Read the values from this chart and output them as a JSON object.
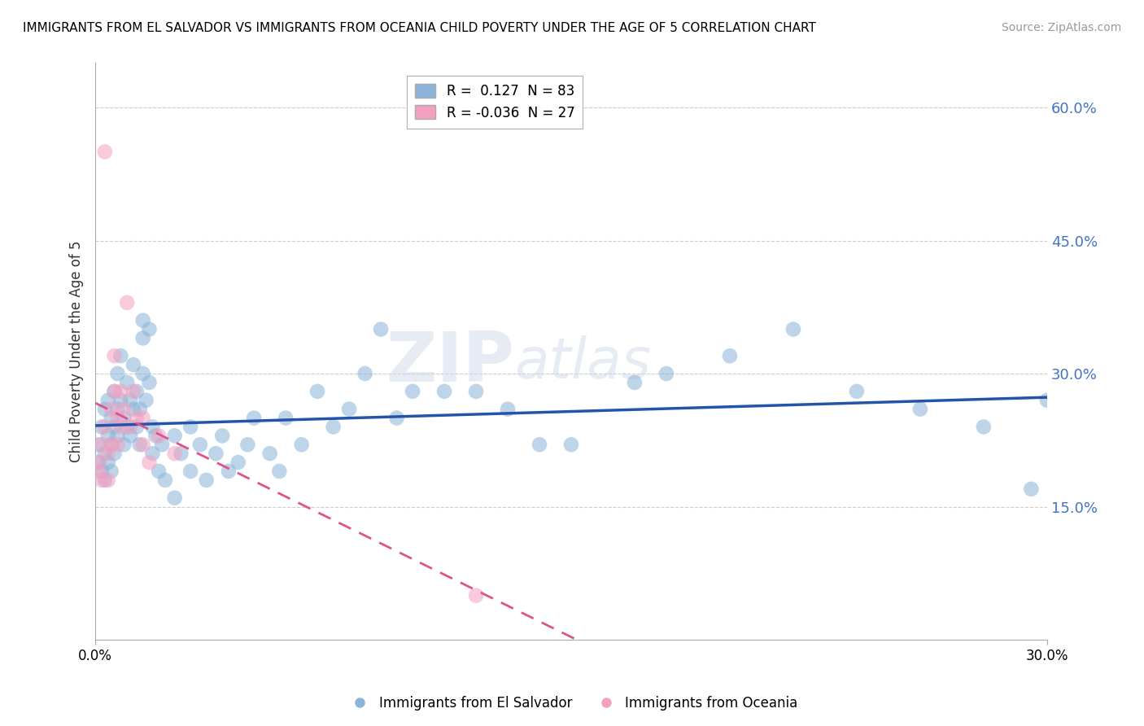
{
  "title": "IMMIGRANTS FROM EL SALVADOR VS IMMIGRANTS FROM OCEANIA CHILD POVERTY UNDER THE AGE OF 5 CORRELATION CHART",
  "source": "Source: ZipAtlas.com",
  "ylabel": "Child Poverty Under the Age of 5",
  "yticks": [
    0.0,
    0.15,
    0.3,
    0.45,
    0.6
  ],
  "ytick_labels": [
    "",
    "15.0%",
    "30.0%",
    "45.0%",
    "60.0%"
  ],
  "xlim": [
    0.0,
    0.3
  ],
  "ylim": [
    0.0,
    0.65
  ],
  "legend_entries": [
    {
      "label": "R =  0.127  N = 83",
      "color": "#8ab4d8"
    },
    {
      "label": "R = -0.036  N = 27",
      "color": "#f4a0c0"
    }
  ],
  "legend_labels_bottom": [
    "Immigrants from El Salvador",
    "Immigrants from Oceania"
  ],
  "blue_color": "#8ab4d8",
  "pink_color": "#f4a0c0",
  "trend_blue_color": "#2255aa",
  "trend_pink_color": "#dd5588",
  "grid_color": "#cccccc",
  "watermark_zip": "ZIP",
  "watermark_atlas": "atlas",
  "blue_scatter": [
    [
      0.001,
      0.2
    ],
    [
      0.001,
      0.22
    ],
    [
      0.002,
      0.24
    ],
    [
      0.002,
      0.19
    ],
    [
      0.003,
      0.26
    ],
    [
      0.003,
      0.21
    ],
    [
      0.003,
      0.18
    ],
    [
      0.004,
      0.23
    ],
    [
      0.004,
      0.27
    ],
    [
      0.004,
      0.2
    ],
    [
      0.005,
      0.25
    ],
    [
      0.005,
      0.22
    ],
    [
      0.005,
      0.19
    ],
    [
      0.006,
      0.28
    ],
    [
      0.006,
      0.24
    ],
    [
      0.006,
      0.21
    ],
    [
      0.007,
      0.3
    ],
    [
      0.007,
      0.26
    ],
    [
      0.007,
      0.23
    ],
    [
      0.008,
      0.32
    ],
    [
      0.008,
      0.27
    ],
    [
      0.009,
      0.25
    ],
    [
      0.009,
      0.22
    ],
    [
      0.01,
      0.29
    ],
    [
      0.01,
      0.24
    ],
    [
      0.011,
      0.27
    ],
    [
      0.011,
      0.23
    ],
    [
      0.012,
      0.31
    ],
    [
      0.012,
      0.26
    ],
    [
      0.013,
      0.28
    ],
    [
      0.013,
      0.24
    ],
    [
      0.014,
      0.26
    ],
    [
      0.014,
      0.22
    ],
    [
      0.015,
      0.36
    ],
    [
      0.015,
      0.34
    ],
    [
      0.015,
      0.3
    ],
    [
      0.016,
      0.27
    ],
    [
      0.017,
      0.35
    ],
    [
      0.017,
      0.29
    ],
    [
      0.018,
      0.24
    ],
    [
      0.018,
      0.21
    ],
    [
      0.019,
      0.23
    ],
    [
      0.02,
      0.19
    ],
    [
      0.021,
      0.22
    ],
    [
      0.022,
      0.18
    ],
    [
      0.025,
      0.16
    ],
    [
      0.025,
      0.23
    ],
    [
      0.027,
      0.21
    ],
    [
      0.03,
      0.19
    ],
    [
      0.03,
      0.24
    ],
    [
      0.033,
      0.22
    ],
    [
      0.035,
      0.18
    ],
    [
      0.038,
      0.21
    ],
    [
      0.04,
      0.23
    ],
    [
      0.042,
      0.19
    ],
    [
      0.045,
      0.2
    ],
    [
      0.048,
      0.22
    ],
    [
      0.05,
      0.25
    ],
    [
      0.055,
      0.21
    ],
    [
      0.058,
      0.19
    ],
    [
      0.06,
      0.25
    ],
    [
      0.065,
      0.22
    ],
    [
      0.07,
      0.28
    ],
    [
      0.075,
      0.24
    ],
    [
      0.08,
      0.26
    ],
    [
      0.085,
      0.3
    ],
    [
      0.09,
      0.35
    ],
    [
      0.095,
      0.25
    ],
    [
      0.1,
      0.28
    ],
    [
      0.11,
      0.28
    ],
    [
      0.12,
      0.28
    ],
    [
      0.13,
      0.26
    ],
    [
      0.14,
      0.22
    ],
    [
      0.15,
      0.22
    ],
    [
      0.17,
      0.29
    ],
    [
      0.18,
      0.3
    ],
    [
      0.2,
      0.32
    ],
    [
      0.22,
      0.35
    ],
    [
      0.24,
      0.28
    ],
    [
      0.26,
      0.26
    ],
    [
      0.28,
      0.24
    ],
    [
      0.295,
      0.17
    ],
    [
      0.3,
      0.27
    ]
  ],
  "pink_scatter": [
    [
      0.001,
      0.2
    ],
    [
      0.001,
      0.19
    ],
    [
      0.002,
      0.22
    ],
    [
      0.002,
      0.18
    ],
    [
      0.003,
      0.55
    ],
    [
      0.003,
      0.24
    ],
    [
      0.004,
      0.21
    ],
    [
      0.004,
      0.18
    ],
    [
      0.005,
      0.26
    ],
    [
      0.005,
      0.22
    ],
    [
      0.006,
      0.32
    ],
    [
      0.006,
      0.28
    ],
    [
      0.007,
      0.25
    ],
    [
      0.007,
      0.22
    ],
    [
      0.008,
      0.28
    ],
    [
      0.008,
      0.24
    ],
    [
      0.009,
      0.26
    ],
    [
      0.01,
      0.38
    ],
    [
      0.011,
      0.24
    ],
    [
      0.012,
      0.28
    ],
    [
      0.013,
      0.25
    ],
    [
      0.015,
      0.22
    ],
    [
      0.015,
      0.25
    ],
    [
      0.017,
      0.2
    ],
    [
      0.02,
      0.23
    ],
    [
      0.025,
      0.21
    ],
    [
      0.12,
      0.05
    ]
  ]
}
